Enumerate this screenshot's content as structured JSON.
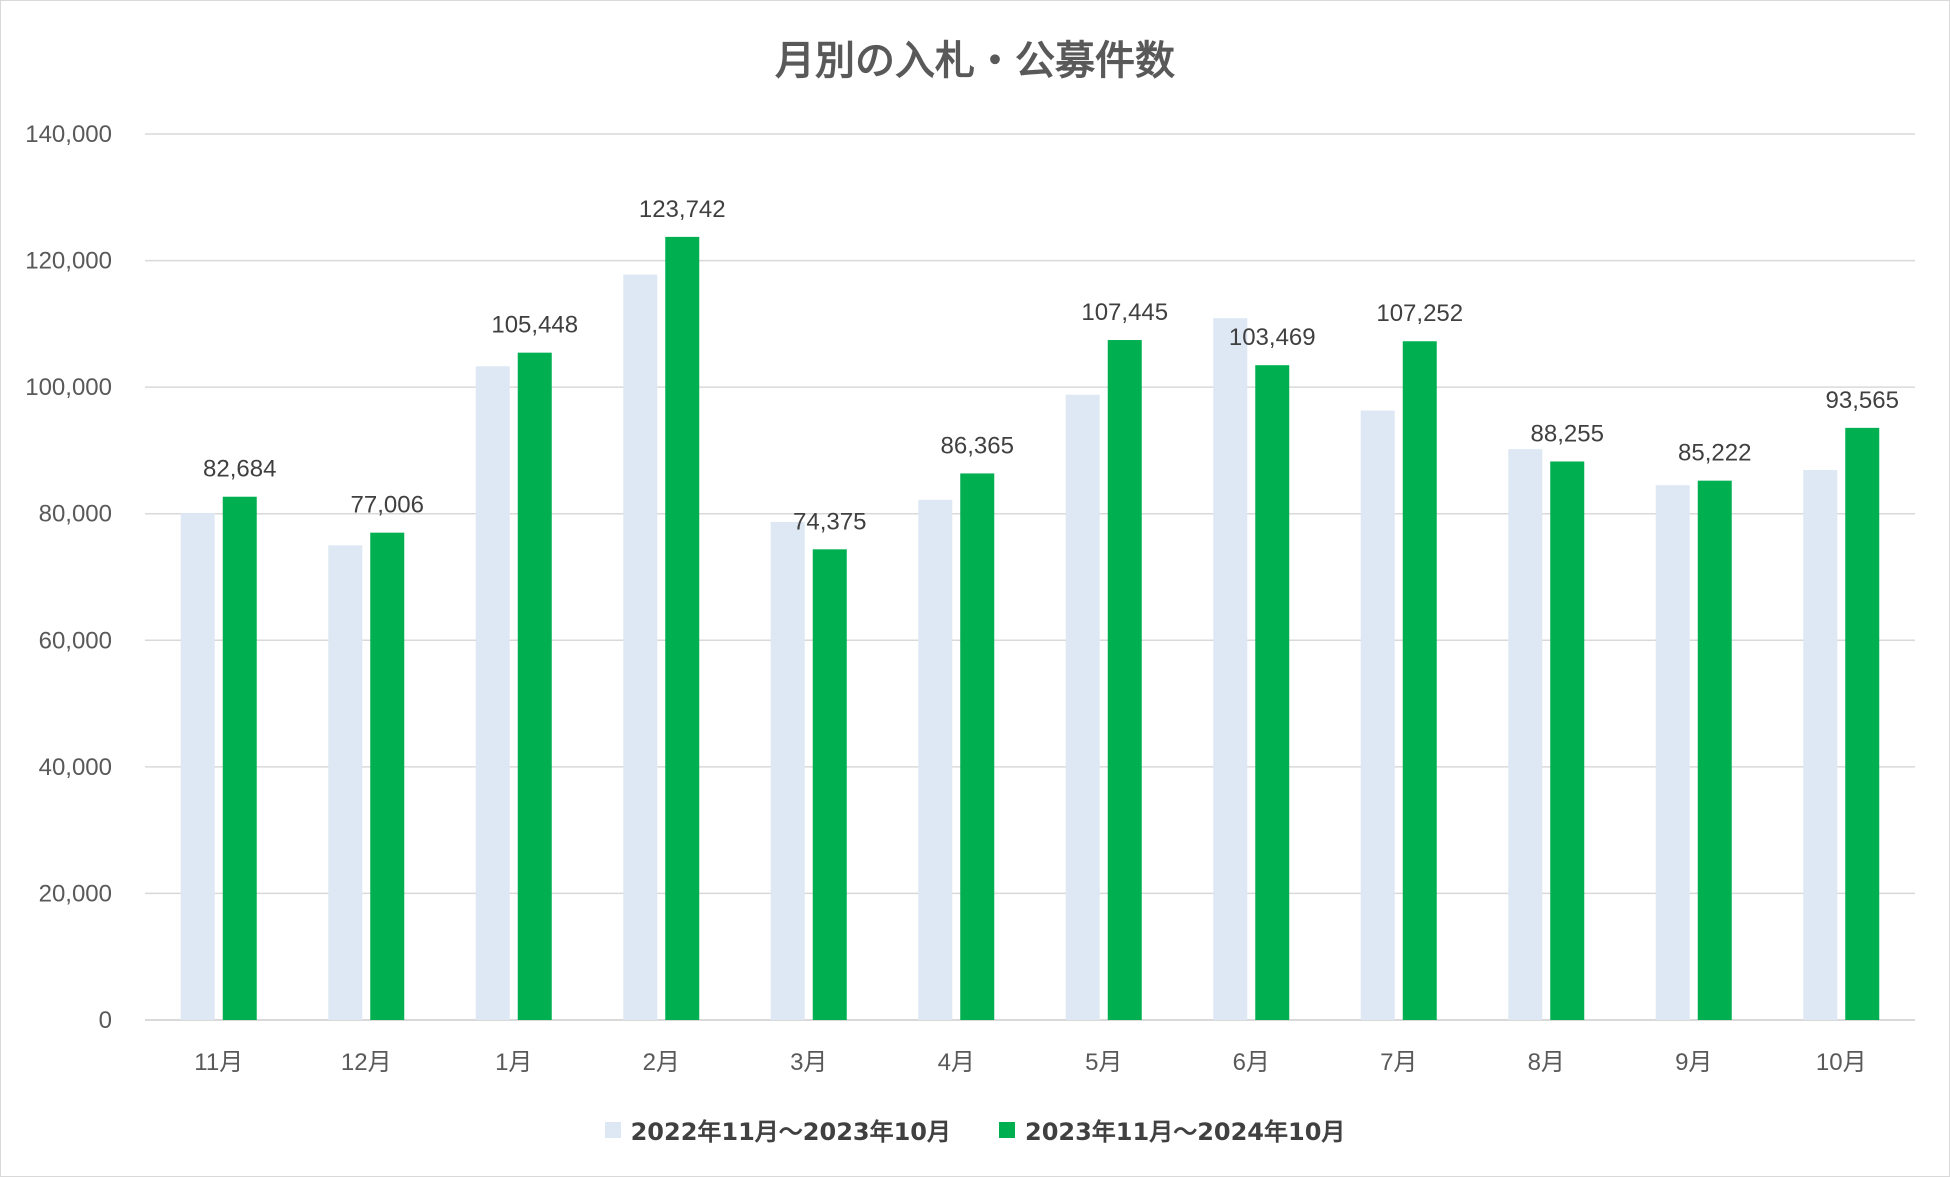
{
  "colors": {
    "series_prev": "#dde8f4",
    "series_curr": "#00b050",
    "grid": "#d9d9d9",
    "axis_text": "#595959",
    "label_text": "#404040"
  },
  "chart_data": {
    "type": "bar",
    "title": "月別の入札・公募件数",
    "xlabel": "",
    "ylabel": "",
    "ylim": [
      0,
      140000
    ],
    "yticks": [
      0,
      20000,
      40000,
      60000,
      80000,
      100000,
      120000,
      140000
    ],
    "ytick_labels": [
      "0",
      "20,000",
      "40,000",
      "60,000",
      "80,000",
      "100,000",
      "120,000",
      "140,000"
    ],
    "categories": [
      "11月",
      "12月",
      "1月",
      "2月",
      "3月",
      "4月",
      "5月",
      "6月",
      "7月",
      "8月",
      "9月",
      "10月"
    ],
    "series": [
      {
        "name": "2022年11月～2023年10月",
        "values": [
          80100,
          75000,
          103300,
          117800,
          78700,
          82200,
          98800,
          110900,
          96300,
          90200,
          84500,
          86900
        ]
      },
      {
        "name": "2023年11月～2024年10月",
        "values": [
          82684,
          77006,
          105448,
          123742,
          74375,
          86365,
          107445,
          103469,
          107252,
          88255,
          85222,
          93565
        ],
        "data_labels": [
          "82,684",
          "77,006",
          "105,448",
          "123,742",
          "74,375",
          "86,365",
          "107,445",
          "103,469",
          "107,252",
          "88,255",
          "85,222",
          "93,565"
        ]
      }
    ],
    "grid": true,
    "legend_position": "bottom"
  }
}
